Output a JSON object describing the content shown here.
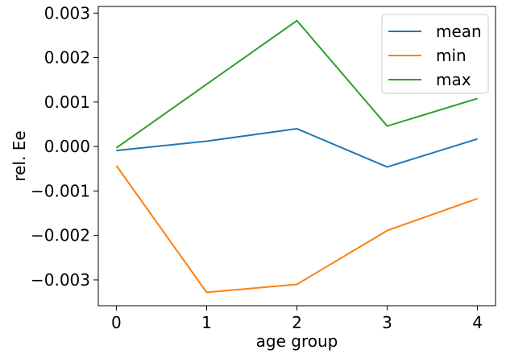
{
  "chart_data": {
    "type": "line",
    "title": "",
    "xlabel": "age group",
    "ylabel": "rel. Ee",
    "x": [
      0,
      1,
      2,
      3,
      4
    ],
    "xticks": [
      "0",
      "1",
      "2",
      "3",
      "4"
    ],
    "yticks": [
      0.003,
      0.002,
      0.001,
      0.0,
      -0.001,
      -0.002,
      -0.003
    ],
    "ytick_labels": [
      "0.003",
      "0.002",
      "0.001",
      "0.000",
      "−0.001",
      "−0.002",
      "−0.003"
    ],
    "xlim": [
      -0.2,
      4.2
    ],
    "ylim": [
      -0.00358,
      0.00315
    ],
    "grid": false,
    "legend_position": "top-right",
    "series": [
      {
        "name": "mean",
        "color": "#1f77b4",
        "values": [
          -9e-05,
          0.00012,
          0.0004,
          -0.00046,
          0.00017
        ]
      },
      {
        "name": "min",
        "color": "#ff7f0e",
        "values": [
          -0.00043,
          -0.00328,
          -0.0031,
          -0.00189,
          -0.00117
        ]
      },
      {
        "name": "max",
        "color": "#2ca02c",
        "values": [
          -3e-05,
          0.0014,
          0.00283,
          0.00046,
          0.00108
        ]
      }
    ]
  }
}
